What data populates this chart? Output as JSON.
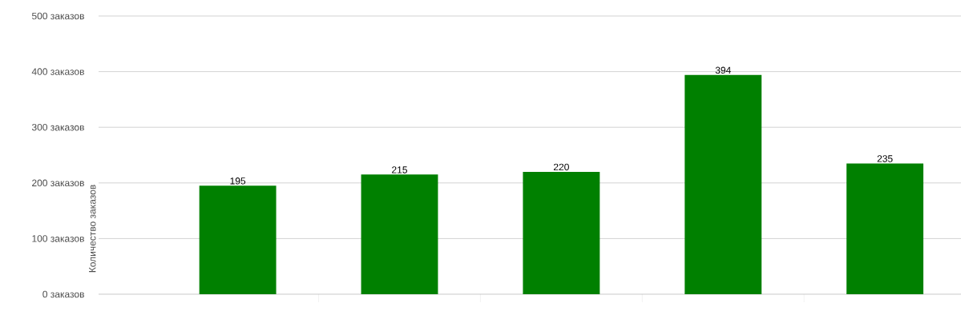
{
  "chart_data": {
    "type": "bar",
    "ylabel": "Количество заказов",
    "categories": [
      null,
      null,
      null,
      null,
      null
    ],
    "values": [
      195,
      215,
      220,
      394,
      235
    ],
    "color": "#008000",
    "ylim": [
      0,
      500
    ],
    "yticks": [
      {
        "value": 0,
        "label": "0 заказов"
      },
      {
        "value": 100,
        "label": "100 заказов"
      },
      {
        "value": 200,
        "label": "200 заказов"
      },
      {
        "value": 300,
        "label": "300 заказов"
      },
      {
        "value": 400,
        "label": "400 заказов"
      },
      {
        "value": 500,
        "label": "500 заказов"
      }
    ],
    "grid": "y",
    "data_labels": true
  }
}
